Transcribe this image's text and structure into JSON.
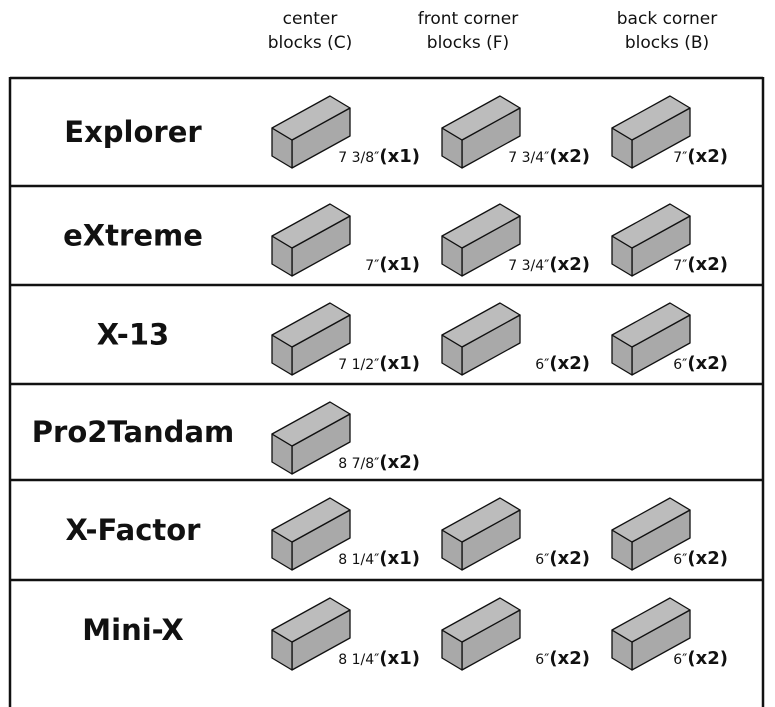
{
  "header": {
    "columns": [
      [
        "center",
        "blocks (C)"
      ],
      [
        "front corner",
        "blocks (F)"
      ],
      [
        "back corner",
        "blocks (B)"
      ]
    ]
  },
  "rows": [
    {
      "name": "Explorer",
      "cells": [
        {
          "size": "7 3/8″",
          "qty": "(x1)"
        },
        {
          "size": "7 3/4″",
          "qty": "(x2)"
        },
        {
          "size": "7″",
          "qty": "(x2)"
        }
      ]
    },
    {
      "name": "eXtreme",
      "cells": [
        {
          "size": "7″",
          "qty": "(x1)"
        },
        {
          "size": "7 3/4″",
          "qty": "(x2)"
        },
        {
          "size": "7″",
          "qty": "(x2)"
        }
      ]
    },
    {
      "name": "X-13",
      "cells": [
        {
          "size": "7 1/2″",
          "qty": "(x1)"
        },
        {
          "size": "6″",
          "qty": "(x2)"
        },
        {
          "size": "6″",
          "qty": "(x2)"
        }
      ]
    },
    {
      "name": "Pro2Tandam",
      "cells": [
        {
          "size": "8 7/8″",
          "qty": "(x2)"
        }
      ]
    },
    {
      "name": "X-Factor",
      "cells": [
        {
          "size": "8 1/4″",
          "qty": "(x1)"
        },
        {
          "size": "6″",
          "qty": "(x2)"
        },
        {
          "size": "6″",
          "qty": "(x2)"
        }
      ]
    },
    {
      "name": "Mini-X",
      "cells": [
        {
          "size": "8 1/4″",
          "qty": "(x1)"
        },
        {
          "size": "6″",
          "qty": "(x2)"
        },
        {
          "size": "6″",
          "qty": "(x2)"
        }
      ]
    }
  ]
}
